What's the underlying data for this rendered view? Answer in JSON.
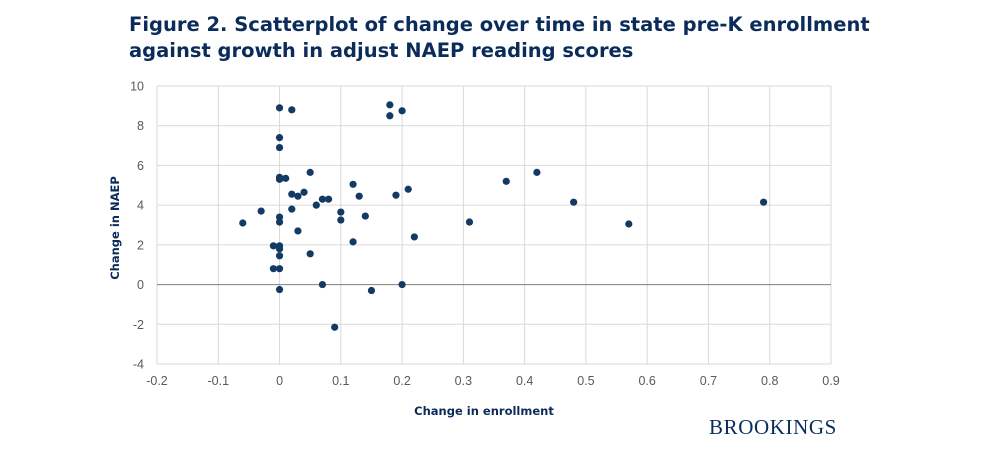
{
  "title_lines": [
    "Figure 2. Scatterplot of change over time in state pre-K enrollment",
    "against growth in adjust NAEP reading scores"
  ],
  "brand": "BROOKINGS",
  "colors": {
    "marker": "#123a62",
    "title": "#0b2c5b",
    "grid": "#d9d9d9",
    "zero_line": "#7f7f7f"
  },
  "chart_data": {
    "type": "scatter",
    "title": "Figure 2. Scatterplot of change over time in state pre-K enrollment against growth in adjust NAEP reading scores",
    "xlabel": "Change in enrollment",
    "ylabel": "Change in NAEP",
    "xlim": [
      -0.2,
      0.9
    ],
    "ylim": [
      -4,
      10
    ],
    "x_ticks": [
      -0.2,
      -0.1,
      0,
      0.1,
      0.2,
      0.3,
      0.4,
      0.5,
      0.6,
      0.7,
      0.8,
      0.9
    ],
    "y_ticks": [
      -4,
      -2,
      0,
      2,
      4,
      6,
      8,
      10
    ],
    "x_tick_labels": [
      "-0.2",
      "-0.1",
      "0",
      "0.1",
      "0.2",
      "0.3",
      "0.4",
      "0.5",
      "0.6",
      "0.7",
      "0.8",
      "0.9"
    ],
    "y_tick_labels": [
      "-4",
      "-2",
      "0",
      "2",
      "4",
      "6",
      "8",
      "10"
    ],
    "grid": true,
    "legend": "none",
    "points": [
      {
        "x": 0.0,
        "y": 8.9
      },
      {
        "x": 0.02,
        "y": 8.8
      },
      {
        "x": 0.18,
        "y": 9.05
      },
      {
        "x": 0.2,
        "y": 8.75
      },
      {
        "x": 0.18,
        "y": 8.5
      },
      {
        "x": 0.0,
        "y": 7.4
      },
      {
        "x": 0.0,
        "y": 6.9
      },
      {
        "x": 0.05,
        "y": 5.65
      },
      {
        "x": 0.0,
        "y": 5.4
      },
      {
        "x": 0.0,
        "y": 5.3
      },
      {
        "x": 0.01,
        "y": 5.35
      },
      {
        "x": 0.42,
        "y": 5.65
      },
      {
        "x": 0.37,
        "y": 5.2
      },
      {
        "x": 0.12,
        "y": 5.05
      },
      {
        "x": 0.21,
        "y": 4.8
      },
      {
        "x": 0.04,
        "y": 4.65
      },
      {
        "x": 0.02,
        "y": 4.55
      },
      {
        "x": 0.03,
        "y": 4.45
      },
      {
        "x": 0.13,
        "y": 4.45
      },
      {
        "x": 0.19,
        "y": 4.5
      },
      {
        "x": 0.07,
        "y": 4.3
      },
      {
        "x": 0.08,
        "y": 4.3
      },
      {
        "x": 0.06,
        "y": 4.0
      },
      {
        "x": 0.48,
        "y": 4.15
      },
      {
        "x": 0.79,
        "y": 4.15
      },
      {
        "x": 0.02,
        "y": 3.8
      },
      {
        "x": -0.03,
        "y": 3.7
      },
      {
        "x": 0.1,
        "y": 3.65
      },
      {
        "x": 0.14,
        "y": 3.45
      },
      {
        "x": 0.0,
        "y": 3.4
      },
      {
        "x": 0.1,
        "y": 3.25
      },
      {
        "x": 0.0,
        "y": 3.15
      },
      {
        "x": 0.31,
        "y": 3.15
      },
      {
        "x": -0.06,
        "y": 3.1
      },
      {
        "x": 0.57,
        "y": 3.05
      },
      {
        "x": 0.03,
        "y": 2.7
      },
      {
        "x": 0.22,
        "y": 2.4
      },
      {
        "x": 0.12,
        "y": 2.15
      },
      {
        "x": -0.01,
        "y": 1.95
      },
      {
        "x": 0.0,
        "y": 1.95
      },
      {
        "x": 0.0,
        "y": 1.8
      },
      {
        "x": 0.05,
        "y": 1.55
      },
      {
        "x": 0.0,
        "y": 1.45
      },
      {
        "x": -0.01,
        "y": 0.8
      },
      {
        "x": 0.0,
        "y": 0.8
      },
      {
        "x": 0.07,
        "y": 0.0
      },
      {
        "x": 0.2,
        "y": 0.0
      },
      {
        "x": 0.0,
        "y": -0.25
      },
      {
        "x": 0.15,
        "y": -0.3
      },
      {
        "x": 0.09,
        "y": -2.15
      }
    ]
  }
}
